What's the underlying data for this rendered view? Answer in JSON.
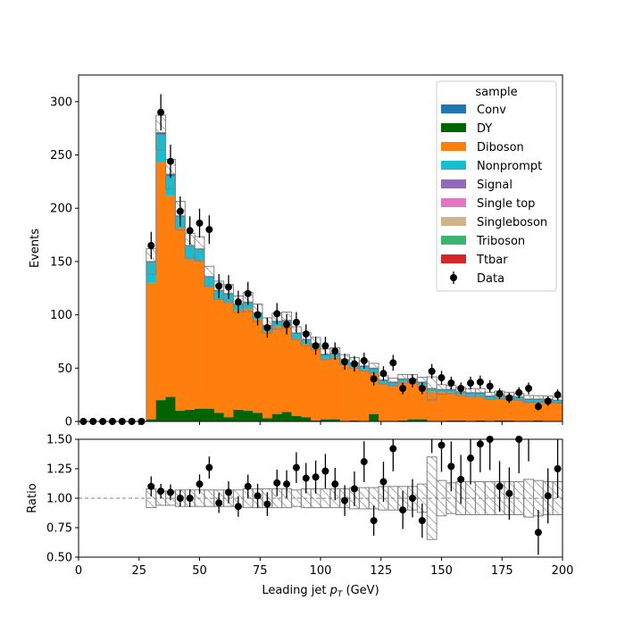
{
  "chart_data": {
    "type": "histogram-stack-ratio",
    "xlabel": "Leading jet  p_T (GeV)",
    "xlabel_main": "Leading jet  ",
    "xlabel_p": "p",
    "xlabel_sub": "T",
    "xlabel_unit": " (GeV)",
    "ylabel": "Events",
    "ratio_ylabel": "Ratio",
    "xlim": [
      0,
      200
    ],
    "ylim": [
      0,
      325
    ],
    "ratio_ylim": [
      0.5,
      1.5
    ],
    "x_ticks": [
      "0",
      "25",
      "50",
      "75",
      "100",
      "125",
      "150",
      "175",
      "200"
    ],
    "y_ticks": [
      "0",
      "50",
      "100",
      "150",
      "200",
      "250",
      "300"
    ],
    "ratio_ticks": [
      "0.50",
      "0.75",
      "1.00",
      "1.25",
      "1.50"
    ],
    "legend": {
      "title": "sample",
      "placement": "top-right",
      "entries": [
        {
          "label": "Conv",
          "color": "#1f77b4"
        },
        {
          "label": "DY",
          "color": "#006400"
        },
        {
          "label": "Diboson",
          "color": "#ff7f0e"
        },
        {
          "label": "Nonprompt",
          "color": "#17becf"
        },
        {
          "label": "Signal",
          "color": "#9467bd"
        },
        {
          "label": "Single top",
          "color": "#e377c2"
        },
        {
          "label": "Singleboson",
          "color": "#d2b48c"
        },
        {
          "label": "Triboson",
          "color": "#3cb371"
        },
        {
          "label": "Ttbar",
          "color": "#d62728"
        }
      ],
      "data_label": "Data"
    },
    "bin_width": 4,
    "bin_starts": [
      28,
      32,
      36,
      40,
      44,
      48,
      52,
      56,
      60,
      64,
      68,
      72,
      76,
      80,
      84,
      88,
      92,
      96,
      100,
      104,
      108,
      112,
      116,
      120,
      124,
      128,
      132,
      136,
      140,
      144,
      148,
      152,
      156,
      160,
      164,
      168,
      172,
      176,
      180,
      184,
      188,
      192,
      196
    ],
    "dy": [
      2,
      20,
      23,
      10,
      11,
      12,
      12,
      8,
      4,
      11,
      10,
      8,
      3,
      7,
      9,
      5,
      4,
      1,
      2,
      2,
      0,
      1,
      0,
      7,
      0,
      0,
      1,
      2,
      2,
      0,
      0,
      1,
      1,
      0,
      1,
      0,
      1,
      1,
      0,
      0,
      1,
      0,
      0
    ],
    "diboson": [
      128,
      223,
      189,
      171,
      141,
      139,
      114,
      106,
      108,
      93,
      96,
      88,
      81,
      82,
      81,
      73,
      68,
      68,
      57,
      58,
      54,
      50,
      48,
      39,
      35,
      33,
      36,
      35,
      32,
      28,
      27,
      26,
      24,
      24,
      23,
      21,
      21,
      20,
      20,
      18,
      17,
      18,
      17
    ],
    "nonprompt": [
      19,
      26,
      18,
      11,
      12,
      10,
      9,
      8,
      7,
      5,
      5,
      5,
      5,
      4,
      4,
      4,
      4,
      3,
      3,
      3,
      3,
      3,
      3,
      3,
      3,
      3,
      2,
      2,
      2,
      2,
      2,
      2,
      2,
      2,
      2,
      2,
      2,
      2,
      2,
      2,
      2,
      2,
      2
    ],
    "others": [
      1,
      2,
      2,
      1,
      1,
      1,
      1,
      1,
      1,
      1,
      1,
      1,
      1,
      1,
      1,
      1,
      1,
      1,
      1,
      1,
      1,
      1,
      1,
      1,
      1,
      1,
      1,
      1,
      1,
      1,
      1,
      1,
      1,
      1,
      1,
      1,
      1,
      1,
      1,
      1,
      1,
      1,
      1
    ],
    "unc_rel": [
      0.08,
      0.06,
      0.06,
      0.07,
      0.07,
      0.07,
      0.07,
      0.07,
      0.07,
      0.07,
      0.08,
      0.08,
      0.08,
      0.08,
      0.08,
      0.07,
      0.08,
      0.08,
      0.08,
      0.08,
      0.08,
      0.09,
      0.09,
      0.09,
      0.1,
      0.1,
      0.1,
      0.1,
      0.12,
      0.35,
      0.15,
      0.13,
      0.14,
      0.14,
      0.14,
      0.14,
      0.14,
      0.14,
      0.14,
      0.16,
      0.15,
      0.14,
      0.14
    ],
    "data": {
      "x": [
        2,
        6,
        10,
        14,
        18,
        22,
        26,
        30,
        34,
        38,
        42,
        46,
        50,
        54,
        58,
        62,
        66,
        70,
        74,
        78,
        82,
        86,
        90,
        94,
        98,
        102,
        106,
        110,
        114,
        118,
        122,
        126,
        130,
        134,
        138,
        142,
        146,
        150,
        154,
        158,
        162,
        166,
        170,
        174,
        178,
        182,
        186,
        190,
        194,
        198
      ],
      "y": [
        0,
        0,
        0,
        0,
        0,
        0,
        0,
        165,
        290,
        244,
        197,
        179,
        186,
        180,
        127,
        126,
        112,
        120,
        100,
        88,
        101,
        91,
        93,
        82,
        71,
        71,
        66,
        56,
        54,
        57,
        40,
        45,
        55,
        31,
        38,
        31,
        47,
        41,
        36,
        31,
        36,
        37,
        33,
        26,
        22,
        27,
        31,
        14,
        19,
        25
      ]
    },
    "ratio": {
      "x": [
        30,
        34,
        38,
        42,
        46,
        50,
        54,
        58,
        62,
        66,
        70,
        74,
        78,
        82,
        86,
        90,
        94,
        98,
        102,
        106,
        110,
        114,
        118,
        122,
        126,
        130,
        134,
        138,
        142,
        146,
        150,
        154,
        158,
        162,
        166,
        170,
        174,
        178,
        182,
        186,
        190,
        194,
        198
      ],
      "y": [
        1.1,
        1.06,
        1.05,
        1.0,
        1.0,
        1.12,
        1.26,
        0.96,
        1.05,
        0.93,
        1.1,
        1.02,
        0.95,
        1.13,
        1.12,
        1.26,
        1.17,
        1.18,
        1.23,
        1.12,
        0.98,
        1.08,
        1.31,
        0.81,
        1.14,
        1.42,
        0.9,
        1.0,
        0.81,
        1.62,
        1.45,
        1.27,
        1.16,
        1.34,
        1.46,
        1.5,
        1.1,
        1.04,
        1.5,
        1.6,
        0.71,
        1.02,
        1.25
      ]
    }
  }
}
